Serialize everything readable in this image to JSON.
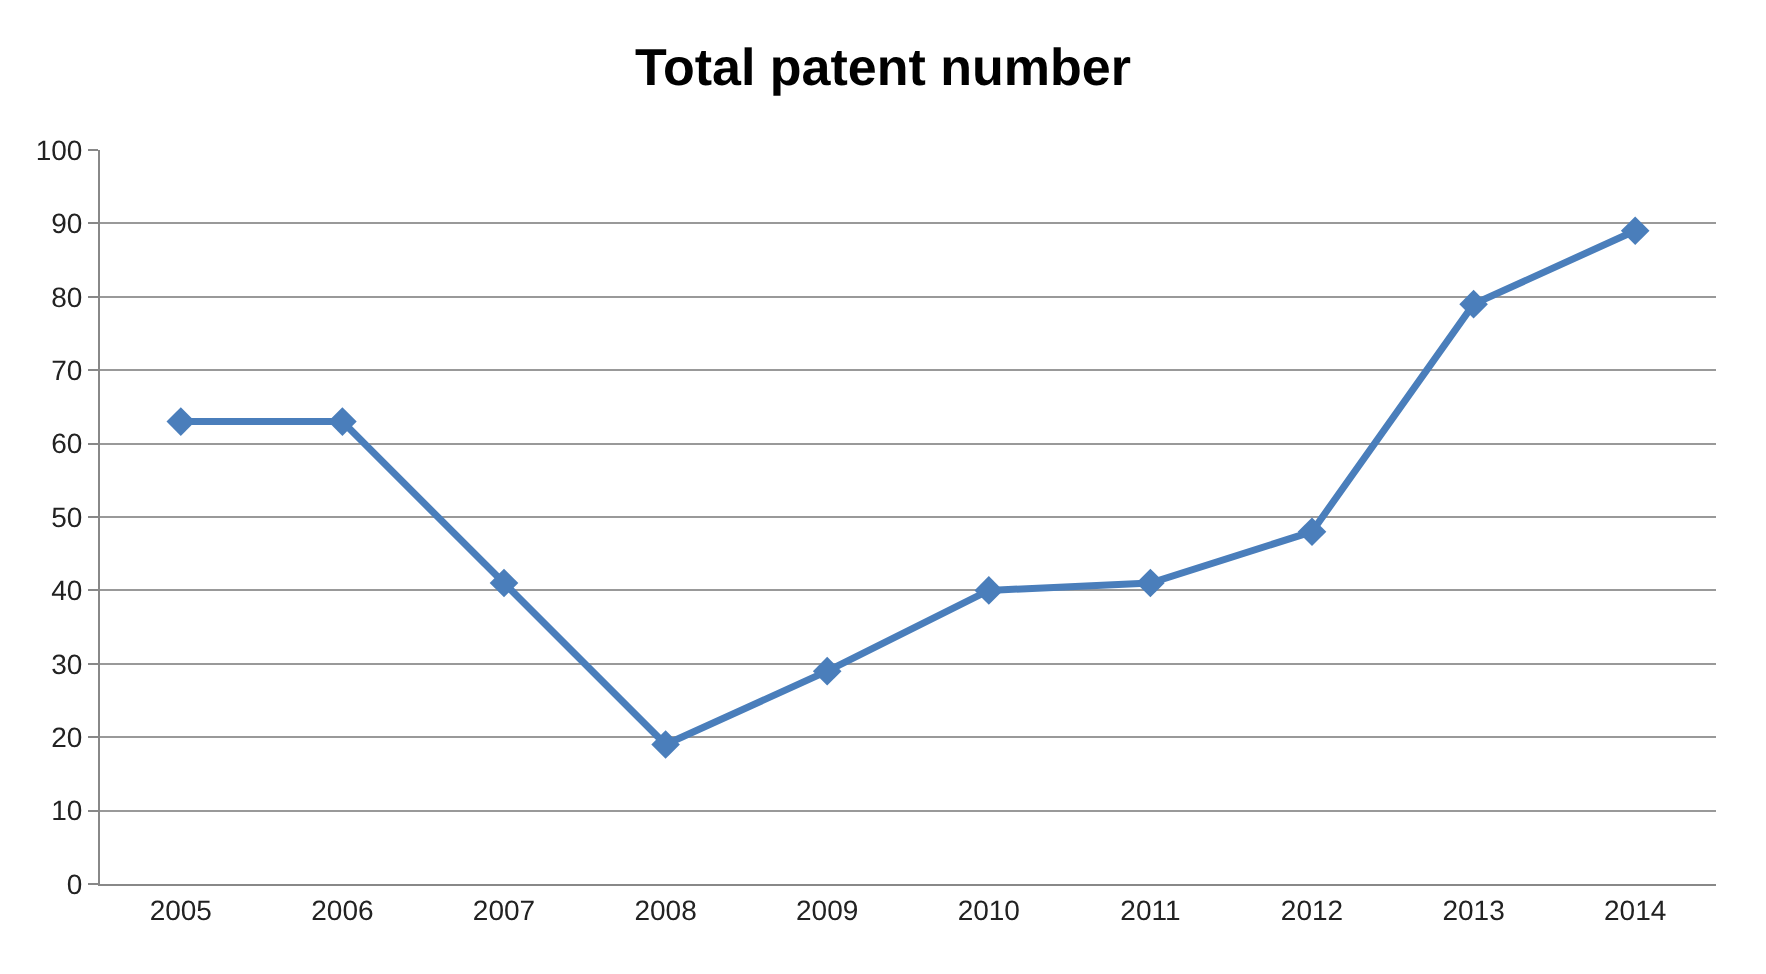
{
  "chart_data": {
    "type": "line",
    "title": "Total patent number",
    "categories": [
      "2005",
      "2006",
      "2007",
      "2008",
      "2009",
      "2010",
      "2011",
      "2012",
      "2013",
      "2014"
    ],
    "series": [
      {
        "color": "#4a7ebb",
        "values": [
          63,
          63,
          41,
          19,
          29,
          40,
          41,
          48,
          79,
          89
        ]
      }
    ],
    "ylim": [
      0,
      100
    ],
    "yticks": [
      0,
      10,
      20,
      30,
      40,
      50,
      60,
      70,
      80,
      90,
      100
    ],
    "grid": "y",
    "marker": "diamond",
    "line_style": "solid"
  }
}
